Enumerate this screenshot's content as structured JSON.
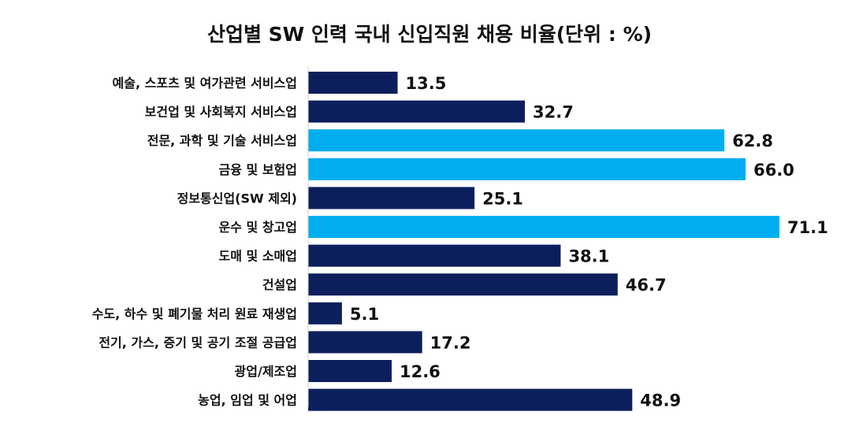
{
  "chart_data": {
    "type": "bar",
    "orientation": "horizontal",
    "title": "산업별 SW 인력 국내 신입직원 채용 비율(단위 : %)",
    "categories": [
      "예술, 스포츠 및 여가관련 서비스업",
      "보건업 및 사회복지 서비스업",
      "전문, 과학 및 기술 서비스업",
      "금융 및 보험업",
      "정보통신업(SW 제외)",
      "운수 및 창고업",
      "도매 및 소매업",
      "건설업",
      "수도, 하수 및 폐기물 처리 원료 재생업",
      "전기, 가스, 증기 및 공기 조절 공급업",
      "광업/제조업",
      "농업, 임업 및 어업"
    ],
    "values": [
      13.5,
      32.7,
      62.8,
      66.0,
      25.1,
      71.1,
      38.1,
      46.7,
      5.1,
      17.2,
      12.6,
      48.9
    ],
    "value_labels": [
      "13.5",
      "32.7",
      "62.8",
      "66.0",
      "25.1",
      "71.1",
      "38.1",
      "46.7",
      "5.1",
      "17.2",
      "12.6",
      "48.9"
    ],
    "highlighted": [
      false,
      false,
      true,
      true,
      false,
      true,
      false,
      false,
      false,
      false,
      false,
      false
    ],
    "xlim": [
      0,
      71.1
    ],
    "grid": false,
    "legend": "none",
    "colors": {
      "default": "#0c1f5c",
      "highlight": "#00aeef"
    }
  }
}
